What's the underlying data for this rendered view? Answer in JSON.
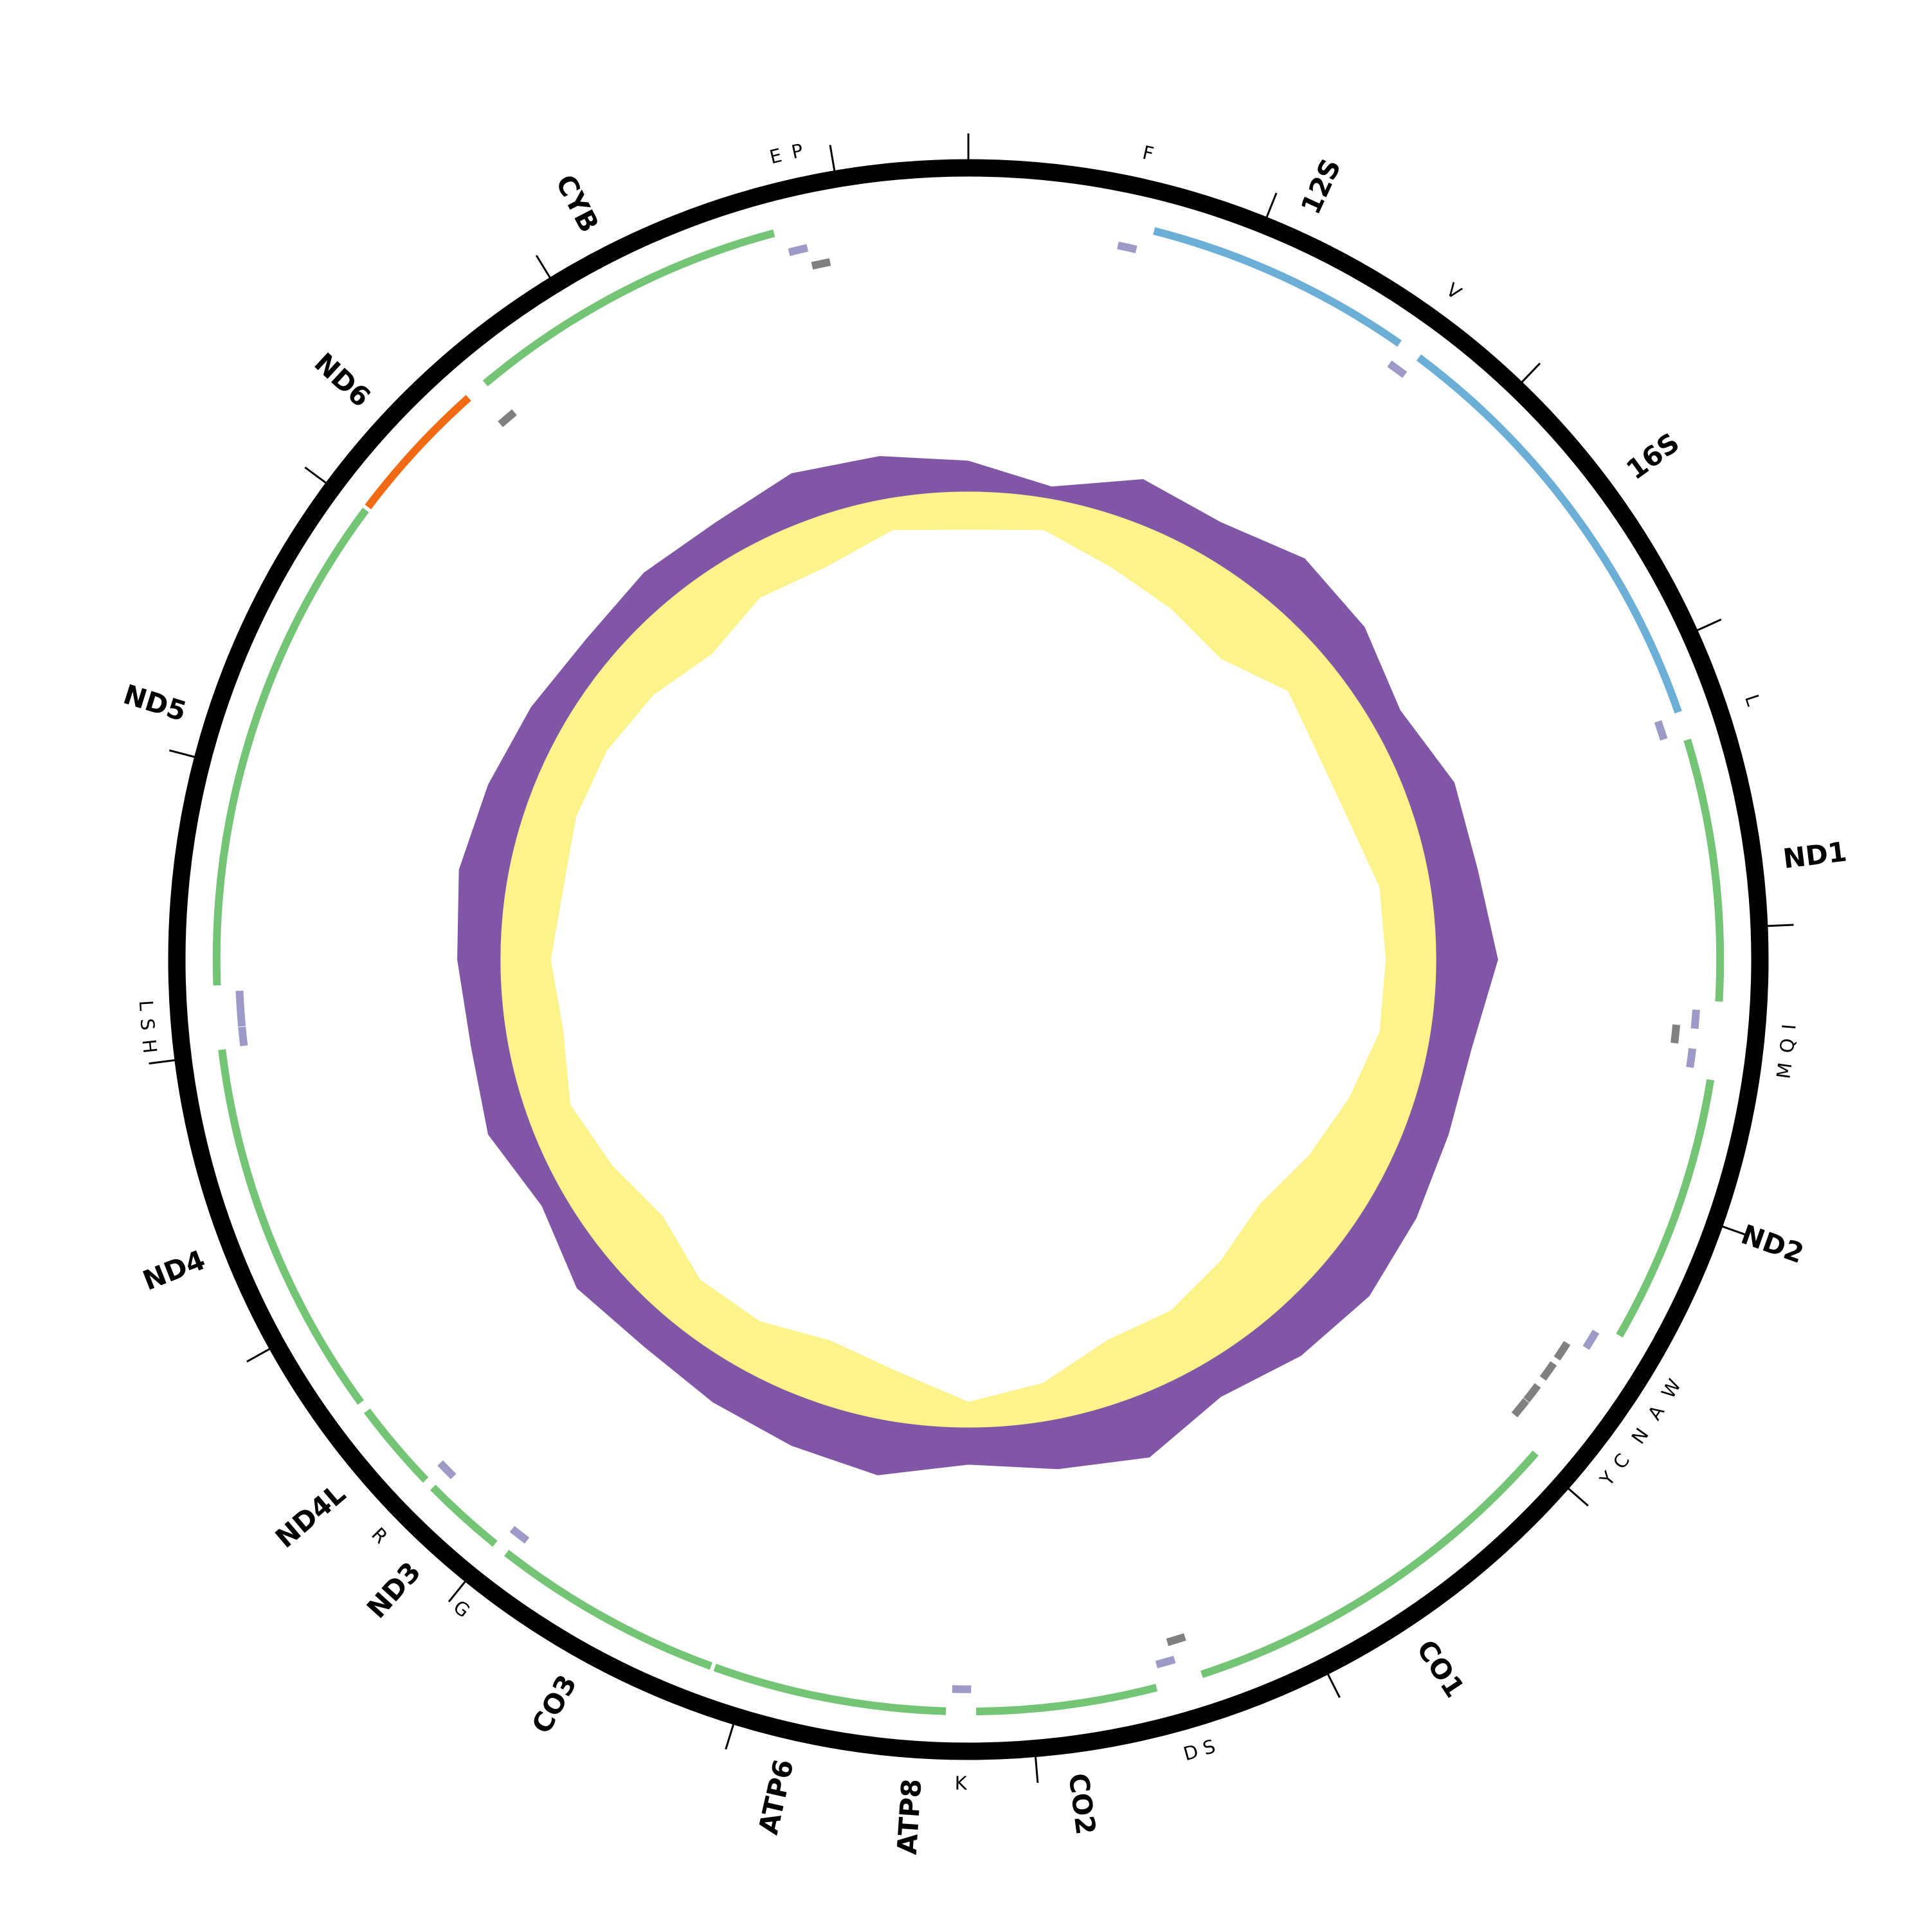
{
  "length": 16440,
  "colors": {
    "CDS+": "#74c476",
    "CDS-": "#f16913",
    "rRNA+": "#6baed6",
    "tRNA+": "#9e9ac8",
    "tRNA-": "#808080",
    "skew_out": "#8156a6",
    "skew_in": "#fdf38b"
  },
  "features": [
    {
      "label": "F",
      "type": "tRNA",
      "strand": "+",
      "start": 540,
      "end": 608
    },
    {
      "label": "12S",
      "type": "rRNA",
      "strand": "+",
      "start": 653,
      "end": 1598
    },
    {
      "label": "V",
      "type": "tRNA",
      "strand": "+",
      "start": 1610,
      "end": 1678
    },
    {
      "label": "16S",
      "type": "rRNA",
      "strand": "+",
      "start": 1681,
      "end": 3233
    },
    {
      "label": "L",
      "type": "tRNA",
      "strand": "+",
      "start": 3240,
      "end": 3308
    },
    {
      "label": "ND1",
      "type": "CDS",
      "strand": "+",
      "start": 3334,
      "end": 4256
    },
    {
      "label": "I",
      "type": "tRNA",
      "strand": "+",
      "start": 4290,
      "end": 4358
    },
    {
      "label": "Q",
      "type": "tRNA",
      "strand": "-",
      "start": 4350,
      "end": 4418
    },
    {
      "label": "M",
      "type": "tRNA",
      "strand": "+",
      "start": 4430,
      "end": 4498
    },
    {
      "label": "ND2",
      "type": "CDS",
      "strand": "+",
      "start": 4530,
      "end": 5480
    },
    {
      "label": "W",
      "type": "tRNA",
      "strand": "+",
      "start": 5510,
      "end": 5578
    },
    {
      "label": "A",
      "type": "tRNA",
      "strand": "-",
      "start": 5600,
      "end": 5668
    },
    {
      "label": "N",
      "type": "tRNA",
      "strand": "-",
      "start": 5690,
      "end": 5758
    },
    {
      "label": "C",
      "type": "tRNA",
      "strand": "-",
      "start": 5790,
      "end": 5858
    },
    {
      "label": "Y",
      "type": "tRNA",
      "strand": "-",
      "start": 5860,
      "end": 5928
    },
    {
      "label": "CO1",
      "type": "CDS",
      "strand": "+",
      "start": 5983,
      "end": 7394
    },
    {
      "label": "S",
      "type": "tRNA",
      "strand": "-",
      "start": 7410,
      "end": 7478
    },
    {
      "label": "D",
      "type": "tRNA",
      "strand": "+",
      "start": 7470,
      "end": 7538
    },
    {
      "label": "CO2",
      "type": "CDS",
      "strand": "+",
      "start": 7558,
      "end": 8193
    },
    {
      "label": "K",
      "type": "tRNA",
      "strand": "+",
      "start": 8210,
      "end": 8278
    },
    {
      "label": "ATP8",
      "type": "CDS",
      "strand": "+",
      "start": 8298,
      "end": 8490
    },
    {
      "label": "ATP6",
      "type": "CDS",
      "strand": "+",
      "start": 8490,
      "end": 9120
    },
    {
      "label": "CO3",
      "type": "CDS",
      "strand": "+",
      "start": 9134,
      "end": 9951
    },
    {
      "label": "G",
      "type": "tRNA",
      "strand": "+",
      "start": 9920,
      "end": 9988
    },
    {
      "label": "ND3",
      "type": "CDS",
      "strand": "+",
      "start": 10002,
      "end": 10294
    },
    {
      "label": "R",
      "type": "tRNA",
      "strand": "+",
      "start": 10270,
      "end": 10338
    },
    {
      "label": "ND4L",
      "type": "CDS",
      "strand": "+",
      "start": 10330,
      "end": 10646
    },
    {
      "label": "ND4",
      "type": "CDS",
      "strand": "+",
      "start": 10682,
      "end": 12016
    },
    {
      "label": "H",
      "type": "tRNA",
      "strand": "+",
      "start": 12020,
      "end": 12088
    },
    {
      "label": "S",
      "type": "tRNA",
      "strand": "+",
      "start": 12090,
      "end": 12158
    },
    {
      "label": "L",
      "type": "tRNA",
      "strand": "+",
      "start": 12150,
      "end": 12218
    },
    {
      "label": "ND5",
      "type": "CDS",
      "strand": "+",
      "start": 12240,
      "end": 14007
    },
    {
      "label": "ND6",
      "type": "CDS",
      "strand": "-",
      "start": 14020,
      "end": 14537
    },
    {
      "label": null,
      "type": "tRNA",
      "strand": "-",
      "start": 14560,
      "end": 14628
    },
    {
      "label": "CYB",
      "type": "CDS",
      "strand": "+",
      "start": 14614,
      "end": 15756
    },
    {
      "label": "E",
      "type": "tRNA",
      "strand": "+",
      "start": 15790,
      "end": 15858
    },
    {
      "label": "P",
      "type": "tRNA",
      "strand": "-",
      "start": 15860,
      "end": 15928
    }
  ],
  "skew": {
    "outward": [
      25,
      10,
      35,
      30,
      45,
      40,
      25,
      40,
      40,
      50,
      35,
      35,
      40,
      45,
      40,
      30,
      50,
      40,
      30,
      45,
      40,
      35,
      30,
      35,
      20,
      35,
      30,
      35,
      40,
      35,
      30,
      25,
      30,
      30,
      40,
      35
    ],
    "inward": [
      30,
      25,
      40,
      50,
      60,
      40,
      50,
      50,
      40,
      40,
      40,
      50,
      60,
      70,
      60,
      50,
      50,
      30,
      20,
      40,
      50,
      40,
      40,
      55,
      45,
      35,
      45,
      40,
      45,
      40,
      40,
      45,
      55,
      40,
      40,
      25
    ]
  }
}
